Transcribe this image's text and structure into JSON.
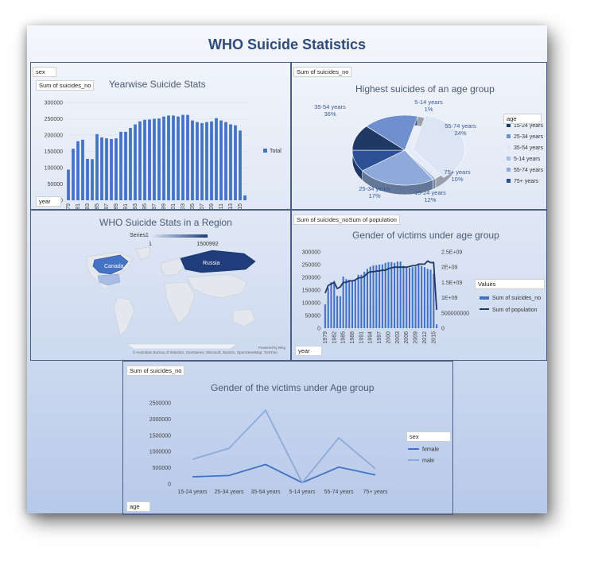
{
  "dashboard": {
    "title": "WHO Suicide Statistics"
  },
  "colors": {
    "primary": "#4472c4",
    "dark": "#1f3d7a",
    "navy": "#203864",
    "light": "#8eaadb",
    "pale": "#dbe5f4"
  },
  "panels": {
    "yearwise": {
      "filter": "sex",
      "field": "Sum of suicides_no",
      "axis_field": "year",
      "title": "Yearwise Suicide Stats",
      "legend": "Total"
    },
    "pie": {
      "field": "Sum of suicides_no",
      "title": "Highest suicides of an age group",
      "legend_title": "age"
    },
    "map": {
      "title": "WHO Suicide Stats in a Region",
      "legend_series": "Series1",
      "scale_min": "1",
      "scale_max": "1500992",
      "label_canada": "Canada",
      "label_russia": "Russia",
      "powered_by": "Powered by Bing",
      "attribution": "© Australian Bureau of Statistics, GeoNames, Microsoft, Navinfo, OpenStreetMap, TomTom"
    },
    "gender_age": {
      "field": "Sum of suicides_noSum of population",
      "title": "Gender of victims under age group",
      "legend_title": "Values",
      "axis_field": "year"
    },
    "gender_line": {
      "field": "Sum of suicides_no",
      "title": "Gender of the victims under Age group",
      "legend_title": "sex",
      "axis_field": "age"
    }
  },
  "chart_data": [
    {
      "type": "bar",
      "title": "Yearwise Suicide Stats",
      "xlabel": "year",
      "ylabel": "Sum of suicides_no",
      "ylim": [
        0,
        300000
      ],
      "y_ticks": [
        "0",
        "50000",
        "100000",
        "150000",
        "200000",
        "250000",
        "300000"
      ],
      "x_tick_labels": [
        "1979",
        "1981",
        "1983",
        "1985",
        "1987",
        "1989",
        "1991",
        "1993",
        "1995",
        "1997",
        "1999",
        "2001",
        "2003",
        "2005",
        "2007",
        "2009",
        "2011",
        "2013",
        "2015"
      ],
      "categories": [
        "1979",
        "1980",
        "1981",
        "1982",
        "1983",
        "1984",
        "1985",
        "1986",
        "1987",
        "1988",
        "1989",
        "1990",
        "1991",
        "1992",
        "1993",
        "1994",
        "1995",
        "1996",
        "1997",
        "1998",
        "1999",
        "2000",
        "2001",
        "2002",
        "2003",
        "2004",
        "2005",
        "2006",
        "2007",
        "2008",
        "2009",
        "2010",
        "2011",
        "2012",
        "2013",
        "2014",
        "2015",
        "2016"
      ],
      "series": [
        {
          "name": "Total",
          "values": [
            94000,
            158000,
            181000,
            186000,
            127000,
            126000,
            203000,
            193000,
            190000,
            188000,
            190000,
            210000,
            210000,
            222000,
            233000,
            242000,
            247000,
            248000,
            250000,
            251000,
            257000,
            260000,
            260000,
            257000,
            262000,
            262000,
            245000,
            240000,
            237000,
            240000,
            242000,
            252000,
            245000,
            240000,
            233000,
            230000,
            214000,
            15000
          ]
        }
      ],
      "legend_position": "right"
    },
    {
      "type": "pie",
      "title": "Highest suicides of an age group",
      "categories": [
        "15-24 years",
        "25-34 years",
        "35-54 years",
        "5-14 years",
        "55-74 years",
        "75+ years"
      ],
      "values": [
        12,
        17,
        36,
        1,
        24,
        10
      ],
      "slice_labels": [
        {
          "age": "15-24 years",
          "pct": "12%"
        },
        {
          "age": "25-34 years",
          "pct": "17%"
        },
        {
          "age": "35-54 years",
          "pct": "36%"
        },
        {
          "age": "5-14 years",
          "pct": "1%"
        },
        {
          "age": "55-74 years",
          "pct": "24%"
        },
        {
          "age": "75+ years",
          "pct": "10%"
        }
      ],
      "legend_position": "right"
    },
    {
      "type": "bar",
      "title": "Gender of victims under age group",
      "xlabel": "year",
      "ylim": [
        0,
        300000
      ],
      "y2lim": [
        0,
        2500000000
      ],
      "y_ticks": [
        "0",
        "50000",
        "100000",
        "150000",
        "200000",
        "250000",
        "300000"
      ],
      "y2_ticks": [
        "0",
        "500000000",
        "1E+09",
        "1.5E+09",
        "2E+09",
        "2.5E+09"
      ],
      "x_tick_labels": [
        "1979",
        "1982",
        "1985",
        "1988",
        "1991",
        "1994",
        "1997",
        "2000",
        "2003",
        "2006",
        "2009",
        "2012",
        "2015"
      ],
      "categories": [
        "1979",
        "1980",
        "1981",
        "1982",
        "1983",
        "1984",
        "1985",
        "1986",
        "1987",
        "1988",
        "1989",
        "1990",
        "1991",
        "1992",
        "1993",
        "1994",
        "1995",
        "1996",
        "1997",
        "1998",
        "1999",
        "2000",
        "2001",
        "2002",
        "2003",
        "2004",
        "2005",
        "2006",
        "2007",
        "2008",
        "2009",
        "2010",
        "2011",
        "2012",
        "2013",
        "2014",
        "2015",
        "2016"
      ],
      "series": [
        {
          "name": "Sum of suicides_no",
          "type": "bar",
          "values": [
            94000,
            158000,
            181000,
            186000,
            127000,
            126000,
            203000,
            193000,
            190000,
            188000,
            190000,
            210000,
            210000,
            222000,
            233000,
            242000,
            247000,
            248000,
            250000,
            251000,
            257000,
            260000,
            260000,
            257000,
            262000,
            262000,
            245000,
            240000,
            237000,
            240000,
            242000,
            252000,
            245000,
            240000,
            233000,
            230000,
            214000,
            15000
          ]
        },
        {
          "name": "Sum of population",
          "type": "line",
          "axis": "secondary",
          "values": [
            1150000000,
            1400000000,
            1450000000,
            1500000000,
            1300000000,
            1350000000,
            1500000000,
            1500000000,
            1550000000,
            1550000000,
            1580000000,
            1650000000,
            1650000000,
            1700000000,
            1800000000,
            1850000000,
            1850000000,
            1870000000,
            1880000000,
            1900000000,
            1900000000,
            1950000000,
            1980000000,
            2000000000,
            2000000000,
            2000000000,
            2000000000,
            2000000000,
            2020000000,
            2050000000,
            2050000000,
            2100000000,
            2100000000,
            2100000000,
            2200000000,
            2150000000,
            2150000000,
            600000000
          ]
        }
      ],
      "legend_position": "right"
    },
    {
      "type": "line",
      "title": "Gender of the victims under Age group",
      "xlabel": "age",
      "ylim": [
        0,
        2500000
      ],
      "y_ticks": [
        "0",
        "500000",
        "1000000",
        "1500000",
        "2000000",
        "2500000"
      ],
      "categories": [
        "15-24 years",
        "25-34 years",
        "35-54 years",
        "5-14 years",
        "55-74 years",
        "75+ years"
      ],
      "series": [
        {
          "name": "female",
          "values": [
            220000,
            260000,
            600000,
            40000,
            520000,
            280000
          ]
        },
        {
          "name": "male",
          "values": [
            760000,
            1100000,
            2270000,
            40000,
            1420000,
            470000
          ]
        }
      ],
      "legend_position": "right"
    }
  ]
}
